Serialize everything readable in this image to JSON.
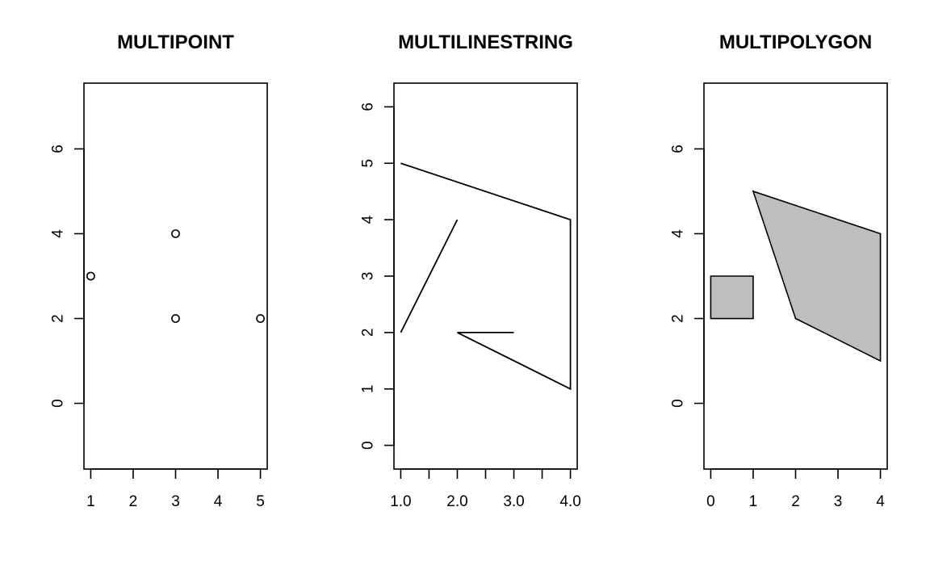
{
  "chart_data": [
    {
      "type": "scatter",
      "title": "MULTIPOINT",
      "xlim": [
        0.84,
        5.16
      ],
      "ylim": [
        -1.55,
        7.55
      ],
      "x_ticks": [
        1,
        2,
        3,
        4,
        5
      ],
      "x_tick_labels": [
        "1",
        "2",
        "3",
        "4",
        "5"
      ],
      "y_ticks": [
        0,
        2,
        4,
        6
      ],
      "y_tick_labels": [
        "0",
        "2",
        "4",
        "6"
      ],
      "grid": false,
      "points": [
        {
          "x": 1,
          "y": 3
        },
        {
          "x": 3,
          "y": 4
        },
        {
          "x": 3,
          "y": 2
        },
        {
          "x": 5,
          "y": 2
        }
      ]
    },
    {
      "type": "line",
      "title": "MULTILINESTRING",
      "xlim": [
        0.88,
        4.12
      ],
      "ylim": [
        -0.42,
        6.42
      ],
      "x_ticks": [
        1.0,
        1.5,
        2.0,
        2.5,
        3.0,
        3.5,
        4.0
      ],
      "x_tick_labels": [
        "1.0",
        "",
        "2.0",
        "",
        "3.0",
        "",
        "4.0"
      ],
      "y_ticks": [
        0,
        1,
        2,
        3,
        4,
        5,
        6
      ],
      "y_tick_labels": [
        "0",
        "1",
        "2",
        "3",
        "4",
        "5",
        "6"
      ],
      "grid": false,
      "series": [
        {
          "values": [
            [
              1,
              5
            ],
            [
              4,
              4
            ],
            [
              4,
              1
            ],
            [
              2,
              2
            ],
            [
              3,
              2
            ]
          ]
        },
        {
          "values": [
            [
              1,
              2
            ],
            [
              2,
              4
            ]
          ]
        }
      ]
    },
    {
      "type": "area",
      "title": "MULTIPOLYGON",
      "xlim": [
        -0.16,
        4.16
      ],
      "ylim": [
        -1.55,
        7.55
      ],
      "x_ticks": [
        0,
        1,
        2,
        3,
        4
      ],
      "x_tick_labels": [
        "0",
        "1",
        "2",
        "3",
        "4"
      ],
      "y_ticks": [
        0,
        2,
        4,
        6
      ],
      "y_tick_labels": [
        "0",
        "2",
        "4",
        "6"
      ],
      "grid": false,
      "fill_color": "#bebebe",
      "polygons": [
        [
          [
            0,
            2
          ],
          [
            1,
            2
          ],
          [
            1,
            3
          ],
          [
            0,
            3
          ]
        ],
        [
          [
            1,
            5
          ],
          [
            4,
            4
          ],
          [
            4,
            1
          ],
          [
            2,
            2
          ]
        ]
      ]
    }
  ]
}
